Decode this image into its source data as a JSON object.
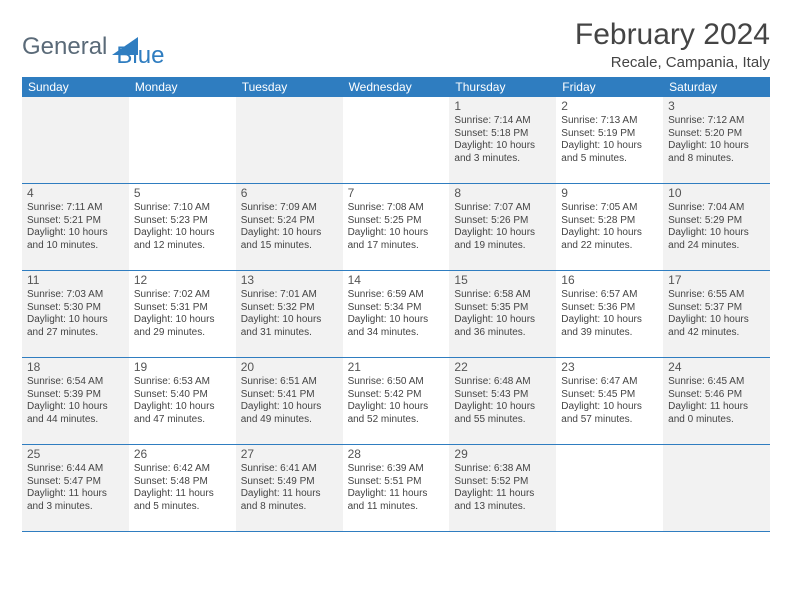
{
  "logo": {
    "text1": "General",
    "text2": "Blue"
  },
  "title": "February 2024",
  "location": "Recale, Campania, Italy",
  "style": {
    "header_bg": "#2f7dc0",
    "header_fg": "#ffffff",
    "shaded_bg": "#f2f2f2",
    "border_color": "#2f7dc0",
    "text_color": "#444444",
    "title_fontsize": 30,
    "location_fontsize": 15,
    "weekday_fontsize": 12,
    "daynum_fontsize": 12,
    "detail_fontsize": 10
  },
  "weekdays": [
    "Sunday",
    "Monday",
    "Tuesday",
    "Wednesday",
    "Thursday",
    "Friday",
    "Saturday"
  ],
  "weeks": [
    [
      {
        "shaded": true
      },
      {
        "shaded": false
      },
      {
        "shaded": true
      },
      {
        "shaded": false
      },
      {
        "num": "1",
        "shaded": true,
        "sunrise": "Sunrise: 7:14 AM",
        "sunset": "Sunset: 5:18 PM",
        "daylight1": "Daylight: 10 hours",
        "daylight2": "and 3 minutes."
      },
      {
        "num": "2",
        "shaded": false,
        "sunrise": "Sunrise: 7:13 AM",
        "sunset": "Sunset: 5:19 PM",
        "daylight1": "Daylight: 10 hours",
        "daylight2": "and 5 minutes."
      },
      {
        "num": "3",
        "shaded": true,
        "sunrise": "Sunrise: 7:12 AM",
        "sunset": "Sunset: 5:20 PM",
        "daylight1": "Daylight: 10 hours",
        "daylight2": "and 8 minutes."
      }
    ],
    [
      {
        "num": "4",
        "shaded": true,
        "sunrise": "Sunrise: 7:11 AM",
        "sunset": "Sunset: 5:21 PM",
        "daylight1": "Daylight: 10 hours",
        "daylight2": "and 10 minutes."
      },
      {
        "num": "5",
        "shaded": false,
        "sunrise": "Sunrise: 7:10 AM",
        "sunset": "Sunset: 5:23 PM",
        "daylight1": "Daylight: 10 hours",
        "daylight2": "and 12 minutes."
      },
      {
        "num": "6",
        "shaded": true,
        "sunrise": "Sunrise: 7:09 AM",
        "sunset": "Sunset: 5:24 PM",
        "daylight1": "Daylight: 10 hours",
        "daylight2": "and 15 minutes."
      },
      {
        "num": "7",
        "shaded": false,
        "sunrise": "Sunrise: 7:08 AM",
        "sunset": "Sunset: 5:25 PM",
        "daylight1": "Daylight: 10 hours",
        "daylight2": "and 17 minutes."
      },
      {
        "num": "8",
        "shaded": true,
        "sunrise": "Sunrise: 7:07 AM",
        "sunset": "Sunset: 5:26 PM",
        "daylight1": "Daylight: 10 hours",
        "daylight2": "and 19 minutes."
      },
      {
        "num": "9",
        "shaded": false,
        "sunrise": "Sunrise: 7:05 AM",
        "sunset": "Sunset: 5:28 PM",
        "daylight1": "Daylight: 10 hours",
        "daylight2": "and 22 minutes."
      },
      {
        "num": "10",
        "shaded": true,
        "sunrise": "Sunrise: 7:04 AM",
        "sunset": "Sunset: 5:29 PM",
        "daylight1": "Daylight: 10 hours",
        "daylight2": "and 24 minutes."
      }
    ],
    [
      {
        "num": "11",
        "shaded": true,
        "sunrise": "Sunrise: 7:03 AM",
        "sunset": "Sunset: 5:30 PM",
        "daylight1": "Daylight: 10 hours",
        "daylight2": "and 27 minutes."
      },
      {
        "num": "12",
        "shaded": false,
        "sunrise": "Sunrise: 7:02 AM",
        "sunset": "Sunset: 5:31 PM",
        "daylight1": "Daylight: 10 hours",
        "daylight2": "and 29 minutes."
      },
      {
        "num": "13",
        "shaded": true,
        "sunrise": "Sunrise: 7:01 AM",
        "sunset": "Sunset: 5:32 PM",
        "daylight1": "Daylight: 10 hours",
        "daylight2": "and 31 minutes."
      },
      {
        "num": "14",
        "shaded": false,
        "sunrise": "Sunrise: 6:59 AM",
        "sunset": "Sunset: 5:34 PM",
        "daylight1": "Daylight: 10 hours",
        "daylight2": "and 34 minutes."
      },
      {
        "num": "15",
        "shaded": true,
        "sunrise": "Sunrise: 6:58 AM",
        "sunset": "Sunset: 5:35 PM",
        "daylight1": "Daylight: 10 hours",
        "daylight2": "and 36 minutes."
      },
      {
        "num": "16",
        "shaded": false,
        "sunrise": "Sunrise: 6:57 AM",
        "sunset": "Sunset: 5:36 PM",
        "daylight1": "Daylight: 10 hours",
        "daylight2": "and 39 minutes."
      },
      {
        "num": "17",
        "shaded": true,
        "sunrise": "Sunrise: 6:55 AM",
        "sunset": "Sunset: 5:37 PM",
        "daylight1": "Daylight: 10 hours",
        "daylight2": "and 42 minutes."
      }
    ],
    [
      {
        "num": "18",
        "shaded": true,
        "sunrise": "Sunrise: 6:54 AM",
        "sunset": "Sunset: 5:39 PM",
        "daylight1": "Daylight: 10 hours",
        "daylight2": "and 44 minutes."
      },
      {
        "num": "19",
        "shaded": false,
        "sunrise": "Sunrise: 6:53 AM",
        "sunset": "Sunset: 5:40 PM",
        "daylight1": "Daylight: 10 hours",
        "daylight2": "and 47 minutes."
      },
      {
        "num": "20",
        "shaded": true,
        "sunrise": "Sunrise: 6:51 AM",
        "sunset": "Sunset: 5:41 PM",
        "daylight1": "Daylight: 10 hours",
        "daylight2": "and 49 minutes."
      },
      {
        "num": "21",
        "shaded": false,
        "sunrise": "Sunrise: 6:50 AM",
        "sunset": "Sunset: 5:42 PM",
        "daylight1": "Daylight: 10 hours",
        "daylight2": "and 52 minutes."
      },
      {
        "num": "22",
        "shaded": true,
        "sunrise": "Sunrise: 6:48 AM",
        "sunset": "Sunset: 5:43 PM",
        "daylight1": "Daylight: 10 hours",
        "daylight2": "and 55 minutes."
      },
      {
        "num": "23",
        "shaded": false,
        "sunrise": "Sunrise: 6:47 AM",
        "sunset": "Sunset: 5:45 PM",
        "daylight1": "Daylight: 10 hours",
        "daylight2": "and 57 minutes."
      },
      {
        "num": "24",
        "shaded": true,
        "sunrise": "Sunrise: 6:45 AM",
        "sunset": "Sunset: 5:46 PM",
        "daylight1": "Daylight: 11 hours",
        "daylight2": "and 0 minutes."
      }
    ],
    [
      {
        "num": "25",
        "shaded": true,
        "sunrise": "Sunrise: 6:44 AM",
        "sunset": "Sunset: 5:47 PM",
        "daylight1": "Daylight: 11 hours",
        "daylight2": "and 3 minutes."
      },
      {
        "num": "26",
        "shaded": false,
        "sunrise": "Sunrise: 6:42 AM",
        "sunset": "Sunset: 5:48 PM",
        "daylight1": "Daylight: 11 hours",
        "daylight2": "and 5 minutes."
      },
      {
        "num": "27",
        "shaded": true,
        "sunrise": "Sunrise: 6:41 AM",
        "sunset": "Sunset: 5:49 PM",
        "daylight1": "Daylight: 11 hours",
        "daylight2": "and 8 minutes."
      },
      {
        "num": "28",
        "shaded": false,
        "sunrise": "Sunrise: 6:39 AM",
        "sunset": "Sunset: 5:51 PM",
        "daylight1": "Daylight: 11 hours",
        "daylight2": "and 11 minutes."
      },
      {
        "num": "29",
        "shaded": true,
        "sunrise": "Sunrise: 6:38 AM",
        "sunset": "Sunset: 5:52 PM",
        "daylight1": "Daylight: 11 hours",
        "daylight2": "and 13 minutes."
      },
      {
        "shaded": false
      },
      {
        "shaded": true
      }
    ]
  ]
}
